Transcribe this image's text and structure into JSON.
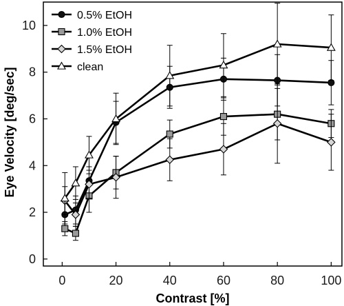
{
  "chart_data": {
    "type": "line",
    "xlabel": "Contrast [%]",
    "ylabel": "Eye Velocity [deg/sec]",
    "xlim": [
      -7,
      104
    ],
    "ylim": [
      -0.3,
      11
    ],
    "xticks": [
      0,
      20,
      40,
      60,
      80,
      100
    ],
    "yticks": [
      0,
      2,
      4,
      6,
      8,
      10
    ],
    "grid": false,
    "legend_position": "top-left",
    "x": [
      1,
      5,
      10,
      20,
      40,
      60,
      80,
      100
    ],
    "series": [
      {
        "name": "0.5% EtOH",
        "marker": "circle",
        "fill": "#111111",
        "values": [
          1.9,
          2.1,
          3.35,
          5.85,
          7.35,
          7.7,
          7.65,
          7.55
        ],
        "errors": [
          0.7,
          0.6,
          0.6,
          0.9,
          0.9,
          0.9,
          1.1,
          0.95
        ]
      },
      {
        "name": "1.0% EtOH",
        "marker": "square",
        "fill": "#9a9a9a",
        "values": [
          1.3,
          1.1,
          2.7,
          3.7,
          5.35,
          6.1,
          6.2,
          5.8
        ],
        "errors": [
          0.3,
          0.3,
          0.7,
          0.7,
          0.6,
          0.8,
          1.1,
          0.6
        ]
      },
      {
        "name": "1.5% EtOH",
        "marker": "diamond",
        "fill": "#d6d6d6",
        "values": [
          2.5,
          1.9,
          3.2,
          3.5,
          4.25,
          4.7,
          5.8,
          5.0
        ],
        "errors": [
          0.6,
          0.5,
          0.6,
          0.9,
          0.9,
          1.1,
          1.7,
          1.2
        ]
      },
      {
        "name": "clean",
        "marker": "triangle",
        "fill": "#ffffff",
        "values": [
          2.6,
          3.25,
          4.45,
          6.0,
          7.85,
          8.3,
          9.2,
          9.05
        ],
        "errors": [
          1.1,
          0.7,
          0.8,
          1.1,
          1.3,
          1.35,
          1.75,
          1.4
        ]
      }
    ]
  }
}
